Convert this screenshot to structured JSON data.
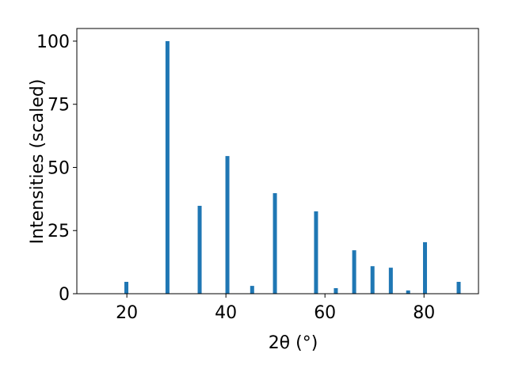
{
  "chart_data": {
    "type": "bar",
    "xlabel": "2θ (°)",
    "ylabel": "Intensities (scaled)",
    "x": [
      19.9,
      28.2,
      34.7,
      40.3,
      45.3,
      49.9,
      58.2,
      62.2,
      65.9,
      69.6,
      73.3,
      76.8,
      80.2,
      87.0
    ],
    "values": [
      4.7,
      100,
      34.8,
      54.5,
      3.1,
      39.8,
      32.6,
      2.2,
      17.2,
      10.9,
      10.3,
      1.3,
      20.4,
      4.7
    ],
    "color": "#1f77b4",
    "xlim": [
      9.9,
      91.0
    ],
    "xticks": [
      20,
      40,
      60,
      80
    ],
    "ylim": [
      0,
      105
    ],
    "yticks": [
      0,
      25,
      50,
      75,
      100
    ]
  }
}
